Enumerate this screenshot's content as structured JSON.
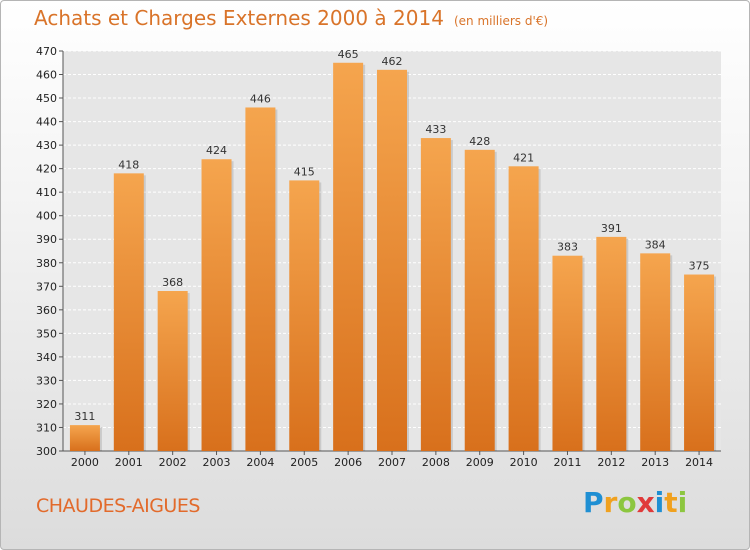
{
  "title": "Achats et Charges Externes 2000 à 2014",
  "subtitle": "(en milliers d'€)",
  "commune": "CHAUDES-AIGUES",
  "logo": {
    "text": "Proxiti",
    "letters": [
      {
        "ch": "P",
        "color": "#1f8fd3"
      },
      {
        "ch": "r",
        "color": "#f0a11f"
      },
      {
        "ch": "o",
        "color": "#8cc63f"
      },
      {
        "ch": "x",
        "color": "#e03a3a"
      },
      {
        "ch": "i",
        "color": "#1f8fd3"
      },
      {
        "ch": "t",
        "color": "#f0a11f"
      },
      {
        "ch": "i",
        "color": "#8cc63f"
      }
    ]
  },
  "colors": {
    "bar_top": "#f5a54e",
    "bar_bottom": "#d8701c",
    "grid": "#ffffff",
    "title": "#d9742a"
  },
  "chart_data": {
    "type": "bar",
    "categories": [
      "2000",
      "2001",
      "2002",
      "2003",
      "2004",
      "2005",
      "2006",
      "2007",
      "2008",
      "2009",
      "2010",
      "2011",
      "2012",
      "2013",
      "2014"
    ],
    "values": [
      311,
      418,
      368,
      424,
      446,
      415,
      465,
      462,
      433,
      428,
      421,
      383,
      391,
      384,
      375
    ],
    "ylim": [
      300,
      470
    ],
    "yticks": [
      300,
      310,
      320,
      330,
      340,
      350,
      360,
      370,
      380,
      390,
      400,
      410,
      420,
      430,
      440,
      450,
      460,
      470
    ],
    "grid": true
  }
}
